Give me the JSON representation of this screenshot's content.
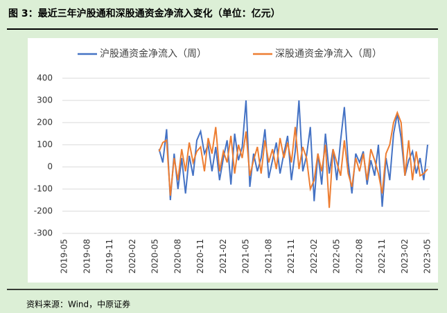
{
  "header": {
    "title": "图 3：最近三年沪股通和深股通资金净流入变化（单位：亿元）"
  },
  "chart_data": {
    "type": "line",
    "categories": [
      "2019-05",
      null,
      null,
      null,
      null,
      null,
      "2019-08",
      null,
      null,
      null,
      null,
      null,
      "2019-11",
      null,
      null,
      null,
      null,
      null,
      "2020-02",
      null,
      null,
      null,
      null,
      null,
      "2020-05",
      null,
      null,
      null,
      null,
      null,
      "2020-08",
      null,
      null,
      null,
      null,
      null,
      "2020-11",
      null,
      null,
      null,
      null,
      null,
      "2021-02",
      null,
      null,
      null,
      null,
      null,
      "2021-05",
      null,
      null,
      null,
      null,
      null,
      "2021-08",
      null,
      null,
      null,
      null,
      null,
      "2021-11",
      null,
      null,
      null,
      null,
      null,
      "2022-02",
      null,
      null,
      null,
      null,
      null,
      "2022-05",
      null,
      null,
      null,
      null,
      null,
      "2022-08",
      null,
      null,
      null,
      null,
      null,
      "2022-11",
      null,
      null,
      null,
      null,
      null,
      "2023-02",
      null,
      null,
      null,
      null,
      null,
      "2023-05"
    ],
    "series": [
      {
        "name": "沪股通资金净流入（周）",
        "color": "#4472c4",
        "values": [
          null,
          null,
          null,
          null,
          null,
          null,
          null,
          null,
          null,
          null,
          null,
          null,
          null,
          null,
          null,
          null,
          null,
          null,
          null,
          null,
          null,
          null,
          null,
          null,
          null,
          80,
          20,
          170,
          -150,
          60,
          -100,
          40,
          -120,
          50,
          -40,
          120,
          160,
          60,
          100,
          -20,
          90,
          -60,
          40,
          120,
          -80,
          150,
          30,
          90,
          300,
          -90,
          60,
          -20,
          40,
          170,
          -50,
          30,
          110,
          -30,
          60,
          140,
          -60,
          70,
          300,
          -20,
          50,
          180,
          -155,
          60,
          -80,
          150,
          -30,
          80,
          -60,
          120,
          270,
          20,
          -120,
          60,
          20,
          70,
          -80,
          30,
          -40,
          100,
          -180,
          40,
          -60,
          150,
          240,
          130,
          -40,
          30,
          70,
          -30,
          40,
          -60,
          100
        ]
      },
      {
        "name": "深股通资金净流入（周）",
        "color": "#ed7d31",
        "values": [
          null,
          null,
          null,
          null,
          null,
          null,
          null,
          null,
          null,
          null,
          null,
          null,
          null,
          null,
          null,
          null,
          null,
          null,
          null,
          null,
          null,
          null,
          null,
          null,
          null,
          70,
          110,
          120,
          -130,
          40,
          -60,
          80,
          -20,
          110,
          20,
          70,
          90,
          -20,
          130,
          60,
          180,
          -20,
          70,
          20,
          140,
          -30,
          100,
          40,
          160,
          -40,
          30,
          90,
          -30,
          120,
          20,
          80,
          -10,
          130,
          40,
          110,
          20,
          180,
          -10,
          90,
          40,
          -100,
          -60,
          60,
          -20,
          100,
          -185,
          80,
          20,
          -40,
          120,
          -30,
          -90,
          40,
          -20,
          60,
          -60,
          80,
          30,
          -30,
          -120,
          60,
          100,
          200,
          245,
          200,
          -40,
          120,
          -60,
          70,
          -40,
          -30,
          -10
        ]
      }
    ],
    "ylim": [
      -300,
      400
    ],
    "yticks": [
      -300,
      -200,
      -100,
      0,
      100,
      200,
      300,
      400
    ],
    "grid": true
  },
  "footer": {
    "source": "资料来源：Wind，中原证券"
  }
}
